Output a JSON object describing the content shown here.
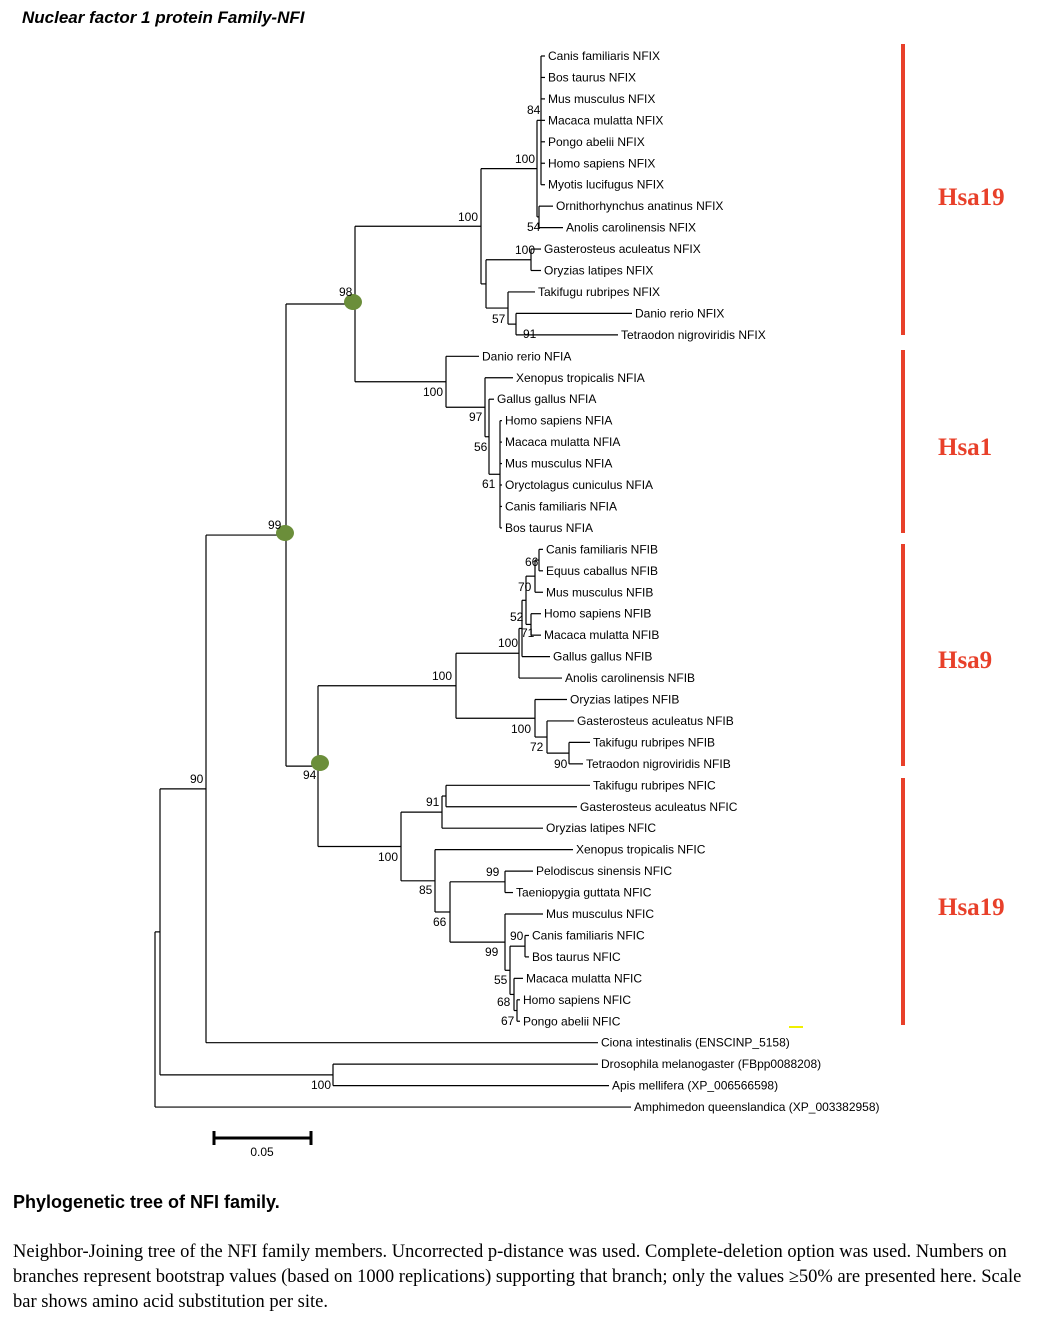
{
  "title": "Nuclear factor 1 protein Family-NFI",
  "caption": {
    "heading": "Phylogenetic tree of  NFI family.",
    "body": "Neighbor-Joining tree of the NFI family members. Uncorrected p-distance was used. Complete-deletion option was used. Numbers on branches represent bootstrap values (based on 1000 replications) supporting that branch; only the values ≥50% are presented here. Scale bar shows amino acid substitution per site."
  },
  "scale_bar": {
    "label": "0.05"
  },
  "colors": {
    "branch": "#000000",
    "group_bar": "#e8402a",
    "node_marker": "#6b8e3a",
    "highlight": "#f0f000"
  },
  "leaves": [
    "Canis familiaris NFIX",
    "Bos taurus NFIX",
    "Mus musculus NFIX",
    "Macaca mulatta NFIX",
    "Pongo abelii NFIX",
    "Homo sapiens NFIX",
    "Myotis lucifugus NFIX",
    "Ornithorhynchus anatinus NFIX",
    "Anolis carolinensis NFIX",
    "Gasterosteus aculeatus NFIX",
    "Oryzias latipes NFIX",
    "Takifugu rubripes NFIX",
    "Danio rerio NFIX",
    "Tetraodon nigroviridis NFIX",
    "Danio rerio NFIA",
    "Xenopus tropicalis NFIA",
    "Gallus gallus NFIA",
    "Homo sapiens NFIA",
    "Macaca mulatta NFIA",
    "Mus musculus NFIA",
    "Oryctolagus cuniculus NFIA",
    "Canis familiaris NFIA",
    "Bos taurus NFIA",
    "Canis familiaris NFIB",
    "Equus caballus NFIB",
    "Mus musculus NFIB",
    "Homo sapiens NFIB",
    "Macaca mulatta NFIB",
    "Gallus gallus NFIB",
    "Anolis carolinensis NFIB",
    "Oryzias latipes NFIB",
    "Gasterosteus aculeatus NFIB",
    "Takifugu rubripes NFIB",
    "Tetraodon nigroviridis NFIB",
    "Takifugu rubripes NFIC",
    "Gasterosteus aculeatus NFIC",
    "Oryzias latipes NFIC",
    "Xenopus tropicalis NFIC",
    "Pelodiscus sinensis NFIC",
    "Taeniopygia guttata NFIC",
    "Mus musculus NFIC",
    "Canis familiaris NFIC",
    "Bos taurus NFIC",
    "Macaca mulatta NFIC",
    "Homo sapiens NFIC",
    "Pongo abelii NFIC",
    "Ciona intestinalis (ENSCINP_5158)",
    "Drosophila melanogaster (FBpp0088208)",
    "Apis mellifera (XP_006566598)",
    "Amphimedon queenslandica (XP_003382958)"
  ],
  "bootstrap_values": [
    "84",
    "100",
    "100",
    "54",
    "100",
    "98",
    "57",
    "91",
    "100",
    "97",
    "56",
    "61",
    "99",
    "66",
    "70",
    "52",
    "71",
    "100",
    "100",
    "100",
    "72",
    "90",
    "94",
    "90",
    "91",
    "100",
    "99",
    "85",
    "66",
    "90",
    "99",
    "55",
    "68",
    "67",
    "100"
  ],
  "groups": [
    {
      "label": "Hsa19"
    },
    {
      "label": "Hsa1"
    },
    {
      "label": "Hsa9"
    },
    {
      "label": "Hsa19"
    }
  ]
}
